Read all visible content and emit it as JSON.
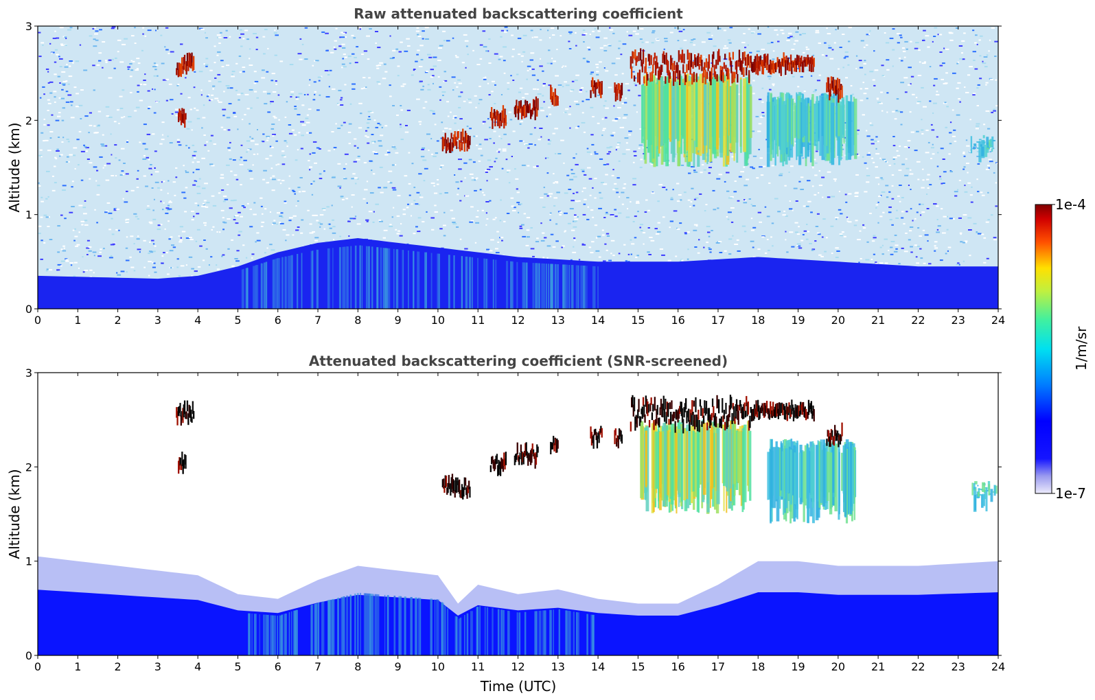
{
  "chart_data": [
    {
      "type": "heatmap",
      "title": "Raw attenuated backscattering coefficient",
      "xlabel": "",
      "ylabel": "Altitude (km)",
      "xlim": [
        0,
        24
      ],
      "ylim": [
        0,
        3
      ],
      "x_ticks": [
        "0",
        "1",
        "2",
        "3",
        "4",
        "5",
        "6",
        "7",
        "8",
        "9",
        "10",
        "11",
        "12",
        "13",
        "14",
        "15",
        "16",
        "17",
        "18",
        "19",
        "20",
        "21",
        "22",
        "23",
        "24"
      ],
      "y_ticks": [
        "0",
        "1",
        "2",
        "3"
      ],
      "background": "noisy blue-white speckle; dense blue boundary layer below ~0.5 km",
      "boundary_layer": {
        "x": [
          0,
          3,
          4,
          5,
          6,
          7,
          8,
          9,
          10,
          12,
          14,
          16,
          18,
          20,
          22,
          24
        ],
        "top_km": [
          0.35,
          0.32,
          0.35,
          0.45,
          0.6,
          0.7,
          0.75,
          0.7,
          0.65,
          0.55,
          0.5,
          0.5,
          0.55,
          0.5,
          0.45,
          0.45
        ]
      },
      "cloud_segments": [
        {
          "x": [
            3.45,
            3.9
          ],
          "y_km": [
            2.4,
            2.65
          ],
          "level": "high"
        },
        {
          "x": [
            3.5,
            3.7
          ],
          "y_km": [
            1.95,
            2.1
          ],
          "level": "high"
        },
        {
          "x": [
            10.1,
            10.8
          ],
          "y_km": [
            1.65,
            1.85
          ],
          "level": "high"
        },
        {
          "x": [
            11.3,
            11.7
          ],
          "y_km": [
            1.9,
            2.1
          ],
          "level": "high"
        },
        {
          "x": [
            11.9,
            12.5
          ],
          "y_km": [
            2.0,
            2.2
          ],
          "level": "high"
        },
        {
          "x": [
            12.8,
            13.0
          ],
          "y_km": [
            2.15,
            2.3
          ],
          "level": "high"
        },
        {
          "x": [
            13.8,
            14.1
          ],
          "y_km": [
            2.2,
            2.4
          ],
          "level": "high"
        },
        {
          "x": [
            14.4,
            14.6
          ],
          "y_km": [
            2.2,
            2.4
          ],
          "level": "high"
        },
        {
          "x": [
            14.8,
            17.8
          ],
          "y_km": [
            2.3,
            2.7
          ],
          "level": "high"
        },
        {
          "x": [
            17.8,
            19.4
          ],
          "y_km": [
            2.5,
            2.65
          ],
          "level": "high"
        },
        {
          "x": [
            19.7,
            20.1
          ],
          "y_km": [
            2.2,
            2.4
          ],
          "level": "high"
        }
      ],
      "precip_shafts": [
        {
          "x": [
            15.0,
            17.8
          ],
          "y_km": [
            1.5,
            2.5
          ],
          "level": "medium"
        },
        {
          "x": [
            18.2,
            20.4
          ],
          "y_km": [
            1.5,
            2.3
          ],
          "level": "low-medium"
        },
        {
          "x": [
            23.3,
            23.9
          ],
          "y_km": [
            1.55,
            1.85
          ],
          "level": "low-medium"
        }
      ]
    },
    {
      "type": "heatmap",
      "title": "Attenuated backscattering coefficient (SNR-screened)",
      "xlabel": "Time (UTC)",
      "ylabel": "Altitude (km)",
      "xlim": [
        0,
        24
      ],
      "ylim": [
        0,
        3
      ],
      "x_ticks": [
        "0",
        "1",
        "2",
        "3",
        "4",
        "5",
        "6",
        "7",
        "8",
        "9",
        "10",
        "11",
        "12",
        "13",
        "14",
        "15",
        "16",
        "17",
        "18",
        "19",
        "20",
        "21",
        "22",
        "23",
        "24"
      ],
      "y_ticks": [
        "0",
        "1",
        "2",
        "3"
      ],
      "boundary_layer": {
        "x": [
          0,
          2,
          4,
          5,
          6,
          7,
          8,
          9,
          10,
          10.5,
          11,
          12,
          13,
          14,
          15,
          16,
          17,
          18,
          19,
          20,
          22,
          24
        ],
        "top_km": [
          1.05,
          0.95,
          0.85,
          0.65,
          0.6,
          0.8,
          0.95,
          0.9,
          0.85,
          0.55,
          0.75,
          0.65,
          0.7,
          0.6,
          0.55,
          0.55,
          0.75,
          1.0,
          1.0,
          0.95,
          0.95,
          1.0
        ]
      },
      "cloud_segments": [
        {
          "x": [
            3.45,
            3.9
          ],
          "y_km": [
            2.4,
            2.65
          ],
          "level": "saturated"
        },
        {
          "x": [
            3.5,
            3.7
          ],
          "y_km": [
            1.95,
            2.1
          ],
          "level": "saturated"
        },
        {
          "x": [
            10.1,
            10.8
          ],
          "y_km": [
            1.65,
            1.85
          ],
          "level": "saturated"
        },
        {
          "x": [
            11.3,
            11.7
          ],
          "y_km": [
            1.9,
            2.1
          ],
          "level": "saturated"
        },
        {
          "x": [
            11.9,
            12.5
          ],
          "y_km": [
            2.0,
            2.2
          ],
          "level": "saturated"
        },
        {
          "x": [
            12.8,
            13.0
          ],
          "y_km": [
            2.15,
            2.3
          ],
          "level": "saturated"
        },
        {
          "x": [
            13.8,
            14.1
          ],
          "y_km": [
            2.2,
            2.4
          ],
          "level": "saturated"
        },
        {
          "x": [
            14.4,
            14.6
          ],
          "y_km": [
            2.2,
            2.4
          ],
          "level": "saturated"
        },
        {
          "x": [
            14.8,
            17.8
          ],
          "y_km": [
            2.3,
            2.7
          ],
          "level": "saturated"
        },
        {
          "x": [
            17.8,
            19.4
          ],
          "y_km": [
            2.5,
            2.65
          ],
          "level": "saturated"
        },
        {
          "x": [
            19.7,
            20.1
          ],
          "y_km": [
            2.2,
            2.4
          ],
          "level": "saturated"
        }
      ],
      "precip_shafts": [
        {
          "x": [
            15.0,
            17.8
          ],
          "y_km": [
            1.5,
            2.5
          ],
          "level": "medium"
        },
        {
          "x": [
            18.2,
            20.4
          ],
          "y_km": [
            1.4,
            2.3
          ],
          "level": "low-medium"
        },
        {
          "x": [
            23.3,
            23.9
          ],
          "y_km": [
            1.5,
            1.85
          ],
          "level": "low-medium"
        }
      ]
    }
  ],
  "colorbar": {
    "label": "1/m/sr",
    "min_label": "1e-7",
    "max_label": "1e-4",
    "colormap": "jet"
  }
}
